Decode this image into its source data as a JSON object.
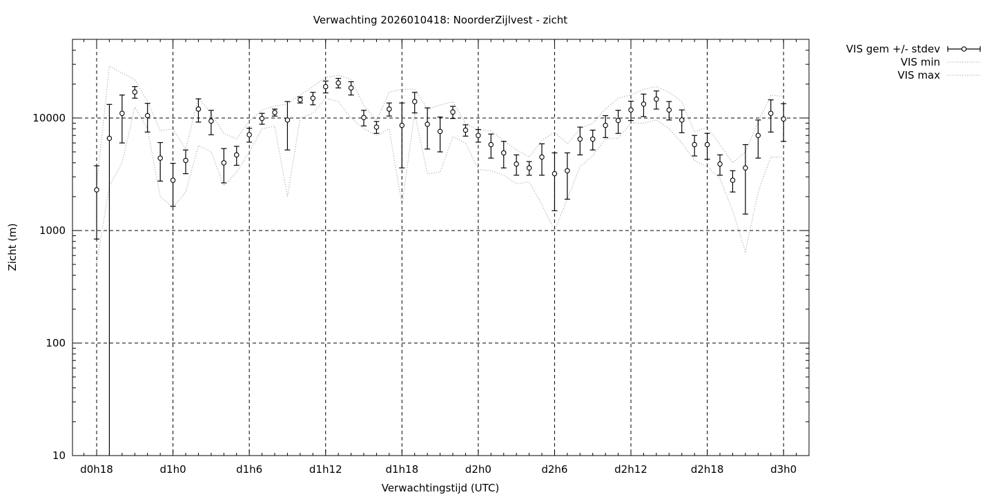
{
  "chart_data": {
    "type": "line",
    "title": "Verwachting 2026010418: NoorderZijlvest - zicht",
    "xlabel": "Verwachtingstijd (UTC)",
    "ylabel": "Zicht (m)",
    "y_scale": "log",
    "ylim": [
      10,
      50000
    ],
    "xlim_hours": [
      16.1,
      74.0
    ],
    "x_ticks": [
      {
        "label": "d0h18",
        "hour": 18
      },
      {
        "label": "d1h0",
        "hour": 24
      },
      {
        "label": "d1h6",
        "hour": 30
      },
      {
        "label": "d1h12",
        "hour": 36
      },
      {
        "label": "d1h18",
        "hour": 42
      },
      {
        "label": "d2h0",
        "hour": 48
      },
      {
        "label": "d2h6",
        "hour": 54
      },
      {
        "label": "d2h12",
        "hour": 60
      },
      {
        "label": "d2h18",
        "hour": 66
      },
      {
        "label": "d3h0",
        "hour": 72
      }
    ],
    "y_ticks": [
      {
        "label": "10",
        "value": 10
      },
      {
        "label": "100",
        "value": 100
      },
      {
        "label": "1000",
        "value": 1000
      },
      {
        "label": "10000",
        "value": 10000
      }
    ],
    "grid": "dashed at labeled ticks",
    "legend_position": "outside-top-right",
    "x_hours": [
      18,
      19,
      20,
      21,
      22,
      23,
      24,
      25,
      26,
      27,
      28,
      29,
      30,
      31,
      32,
      33,
      34,
      35,
      36,
      37,
      38,
      39,
      40,
      41,
      42,
      43,
      44,
      45,
      46,
      47,
      48,
      49,
      50,
      51,
      52,
      53,
      54,
      55,
      56,
      57,
      58,
      59,
      60,
      61,
      62,
      63,
      64,
      65,
      66,
      67,
      68,
      69,
      70,
      71,
      72
    ],
    "series": [
      {
        "name": "VIS gem +/- stdev",
        "style": "points-errorbars",
        "mean": [
          2300,
          6600,
          11000,
          17000,
          10500,
          4400,
          2800,
          4200,
          12000,
          9400,
          4000,
          4700,
          7100,
          9900,
          11200,
          9600,
          14500,
          15000,
          19000,
          20500,
          18500,
          10100,
          8300,
          12000,
          8600,
          14000,
          8800,
          7600,
          11300,
          7800,
          7000,
          5800,
          4900,
          3900,
          3600,
          4500,
          3200,
          3400,
          6500,
          6500,
          8600,
          9500,
          11800,
          13300,
          14700,
          11800,
          9600,
          5800,
          5800,
          3900,
          2800,
          3600,
          7000,
          11000,
          9800
        ],
        "stdev": [
          1460,
          6600,
          5000,
          2000,
          3000,
          1650,
          1160,
          1000,
          2800,
          2300,
          1350,
          900,
          1000,
          1100,
          800,
          4400,
          900,
          1900,
          2300,
          2000,
          2500,
          1600,
          1000,
          1600,
          5000,
          2900,
          3500,
          2600,
          1400,
          900,
          900,
          1400,
          1300,
          800,
          500,
          1400,
          1700,
          1500,
          1800,
          1300,
          1900,
          2200,
          2300,
          3000,
          2700,
          2200,
          2200,
          1200,
          1500,
          800,
          600,
          2200,
          2600,
          3500,
          3600
        ]
      },
      {
        "name": "VIS min",
        "style": "dotted",
        "values": [
          500,
          2500,
          4000,
          12500,
          8000,
          2000,
          1600,
          2200,
          5700,
          5000,
          2500,
          3300,
          5000,
          8000,
          8500,
          2000,
          10000,
          11000,
          15000,
          14000,
          10000,
          8000,
          7000,
          8000,
          1700,
          11000,
          3200,
          3300,
          6800,
          6000,
          3500,
          3400,
          3100,
          2600,
          2700,
          1700,
          1000,
          1900,
          3700,
          4600,
          6500,
          6600,
          9000,
          9000,
          9600,
          8000,
          6000,
          4200,
          3700,
          2900,
          1500,
          650,
          2200,
          4500,
          4500
        ]
      },
      {
        "name": "VIS max",
        "style": "dotted",
        "values": [
          2500,
          29000,
          25000,
          22000,
          14000,
          7700,
          8000,
          5300,
          15000,
          11000,
          7300,
          6500,
          9400,
          11800,
          12800,
          13300,
          16000,
          19000,
          23000,
          24000,
          22000,
          13000,
          9500,
          17000,
          18000,
          18000,
          12000,
          13000,
          14000,
          9000,
          7800,
          7700,
          6300,
          5200,
          4500,
          6300,
          7500,
          5900,
          8000,
          9000,
          12000,
          15000,
          16000,
          18000,
          19000,
          17000,
          14000,
          7500,
          8300,
          5800,
          4000,
          5000,
          9200,
          16000,
          15500
        ]
      }
    ]
  }
}
